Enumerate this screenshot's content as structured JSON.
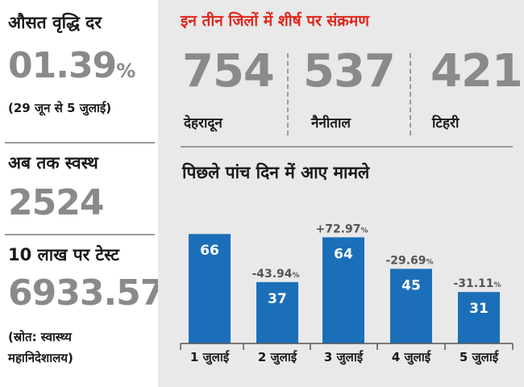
{
  "left": {
    "growth_label": "औसत वृद्धि दर",
    "growth_value": "01.39",
    "growth_unit": "%",
    "growth_period": "(29 जून से 5 जुलाई)",
    "recovered_label": "अब तक स्वस्थ",
    "recovered_value": "2524",
    "tests_label": "10 लाख पर टेस्ट",
    "tests_value": "6933.57",
    "source_line1": "(स्रोत: स्वास्थ्य",
    "source_line2": "महानिदेशालय)"
  },
  "districts": {
    "title": "इन तीन जिलों में शीर्ष पर संक्रमण",
    "items": [
      {
        "value": "754",
        "name": "देहरादून"
      },
      {
        "value": "537",
        "name": "नैनीताल"
      },
      {
        "value": "421",
        "name": "टिहरी"
      }
    ]
  },
  "colors": {
    "bar": "#1a6fb8",
    "title_red": "#e0261d",
    "panel_bg": "#e9e9e9",
    "value_gray": "#8a8a8a"
  },
  "chart_data": {
    "type": "bar",
    "title": "पिछले पांच दिन में आए मामले",
    "categories": [
      "1 जुलाई",
      "2 जुलाई",
      "3 जुलाई",
      "4 जुलाई",
      "5 जुलाई"
    ],
    "values": [
      66,
      37,
      64,
      45,
      31
    ],
    "changes": [
      "",
      "-43.94",
      "+72.97",
      "-29.69",
      "-31.11"
    ],
    "change_unit": "%",
    "ylim": [
      0,
      70
    ],
    "grid": false,
    "legend": "none"
  }
}
